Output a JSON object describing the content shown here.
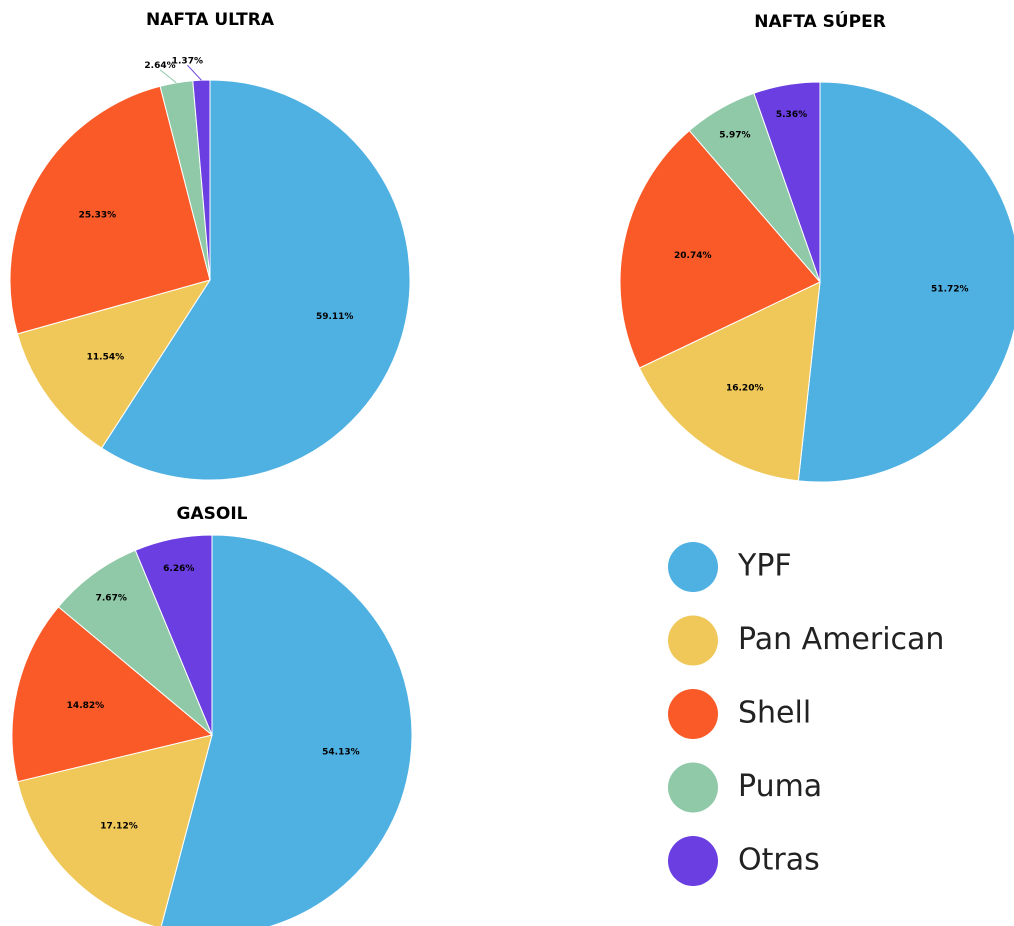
{
  "chart_data": [
    {
      "type": "pie",
      "title": "NAFTA ULTRA",
      "categories": [
        "YPF",
        "Pan American",
        "Shell",
        "Puma",
        "Otras"
      ],
      "values": [
        59.11,
        11.54,
        25.33,
        2.64,
        1.37
      ],
      "value_labels": [
        "59.11%",
        "11.54%",
        "25.33%",
        "2.64%",
        "1.37%"
      ],
      "colors": [
        "#4fb0e2",
        "#f0c85a",
        "#fa5a28",
        "#8fc9a8",
        "#6a3ee0"
      ]
    },
    {
      "type": "pie",
      "title": "NAFTA SÚPER",
      "categories": [
        "YPF",
        "Pan American",
        "Shell",
        "Puma",
        "Otras"
      ],
      "values": [
        51.72,
        16.2,
        20.74,
        5.97,
        5.36
      ],
      "value_labels": [
        "51.72%",
        "16.20%",
        "20.74%",
        "5.97%",
        "5.36%"
      ],
      "colors": [
        "#4fb0e2",
        "#f0c85a",
        "#fa5a28",
        "#8fc9a8",
        "#6a3ee0"
      ]
    },
    {
      "type": "pie",
      "title": "GASOIL",
      "categories": [
        "YPF",
        "Pan American",
        "Shell",
        "Puma",
        "Otras"
      ],
      "values": [
        54.13,
        17.12,
        14.82,
        7.67,
        6.26
      ],
      "value_labels": [
        "54.13%",
        "17.12%",
        "14.82%",
        "7.67%",
        "6.26%"
      ],
      "colors": [
        "#4fb0e2",
        "#f0c85a",
        "#fa5a28",
        "#8fc9a8",
        "#6a3ee0"
      ]
    }
  ]
}
